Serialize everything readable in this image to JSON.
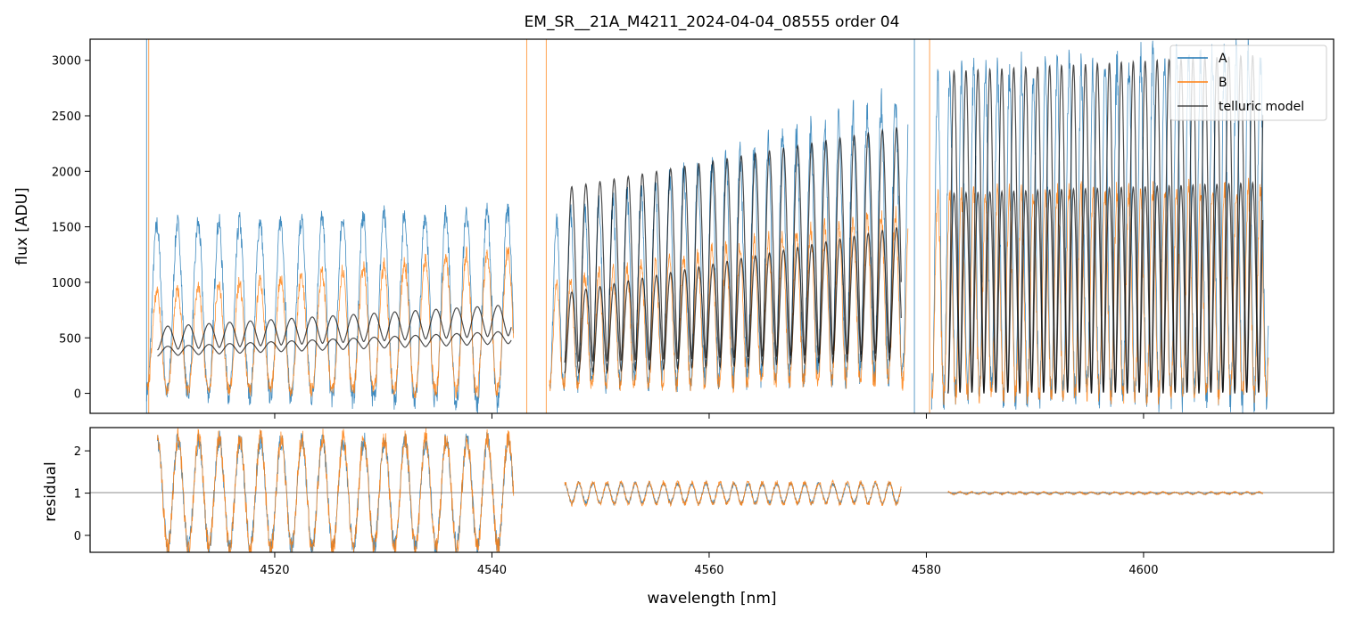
{
  "figure": {
    "title": "EM_SR__21A_M4211_2024-04-04_08555  order 04"
  },
  "chart_data": [
    {
      "panel": "top",
      "type": "line",
      "ylabel": "flux [ADU]",
      "xlim": [
        4503,
        4617.5
      ],
      "ylim": [
        -180,
        3190
      ],
      "xticks": [
        4520,
        4540,
        4560,
        4580,
        4600
      ],
      "yticks": [
        0,
        500,
        1000,
        1500,
        2000,
        2500,
        3000
      ],
      "legend_position": "top-right",
      "grid": false,
      "series": [
        {
          "name": "A",
          "color": "#1f77b4",
          "segments": [
            {
              "x_range": [
                4508.2,
                4542.0
              ],
              "continuum": [
                1520,
                1650
              ],
              "trough": [
                20,
                -100
              ],
              "period_nm": 1.9
            },
            {
              "x_range": [
                4545.3,
                4578.3
              ],
              "continuum": [
                1550,
                2700
              ],
              "trough": [
                80,
                200
              ],
              "period_nm": 1.3
            },
            {
              "x_range": [
                4580.5,
                4611.5
              ],
              "continuum": [
                2850,
                3100
              ],
              "trough": [
                0,
                0
              ],
              "period_nm": 1.1
            }
          ]
        },
        {
          "name": "B",
          "color": "#ff7f0e",
          "segments": [
            {
              "x_range": [
                4508.2,
                4542.0
              ],
              "continuum": [
                900,
                1300
              ],
              "trough": [
                30,
                20
              ],
              "period_nm": 1.9
            },
            {
              "x_range": [
                4545.3,
                4578.3
              ],
              "continuum": [
                1000,
                1650
              ],
              "trough": [
                60,
                120
              ],
              "period_nm": 1.3
            },
            {
              "x_range": [
                4580.5,
                4611.5
              ],
              "continuum": [
                1800,
                1850
              ],
              "trough": [
                0,
                0
              ],
              "period_nm": 1.1
            }
          ]
        },
        {
          "name": "telluric model",
          "color": "#000000",
          "segments": [
            {
              "x_range": [
                4509.2,
                4541.8
              ],
              "level": [
                600,
                800
              ],
              "depth": 0.35,
              "period_nm": 1.9
            },
            {
              "x_range": [
                4509.2,
                4541.8
              ],
              "level": [
                420,
                560
              ],
              "depth": 0.2,
              "period_nm": 1.9
            },
            {
              "x_range": [
                4546.7,
                4577.7
              ],
              "level": [
                1850,
                2400
              ],
              "depth": 0.85,
              "period_nm": 1.3
            },
            {
              "x_range": [
                4546.7,
                4577.7
              ],
              "level": [
                900,
                1500
              ],
              "depth": 0.8,
              "period_nm": 1.3
            },
            {
              "x_range": [
                4582.0,
                4611.0
              ],
              "level": [
                2900,
                3050
              ],
              "depth": 1.0,
              "period_nm": 1.1
            },
            {
              "x_range": [
                4582.0,
                4611.0
              ],
              "level": [
                1800,
                1900
              ],
              "depth": 1.0,
              "period_nm": 1.1
            }
          ]
        }
      ]
    },
    {
      "panel": "bottom",
      "type": "line",
      "xlabel": "wavelength [nm]",
      "ylabel": "residual",
      "xlim": [
        4503,
        4617.5
      ],
      "ylim": [
        -0.4,
        2.55
      ],
      "xticks": [
        4520,
        4540,
        4560,
        4580,
        4600
      ],
      "yticks": [
        0,
        1,
        2
      ],
      "reference_line_y": 1,
      "series": [
        {
          "name": "A",
          "color": "#1f77b4",
          "segments": [
            {
              "x_range": [
                4509.2,
                4542.0
              ],
              "mean": 1.0,
              "amplitude": 1.25
            },
            {
              "x_range": [
                4546.7,
                4577.7
              ],
              "mean": 1.0,
              "amplitude": 0.25
            },
            {
              "x_range": [
                4582.0,
                4611.0
              ],
              "mean": 1.0,
              "amplitude": 0.02
            }
          ]
        },
        {
          "name": "B",
          "color": "#ff7f0e",
          "segments": [
            {
              "x_range": [
                4509.2,
                4542.0
              ],
              "mean": 1.0,
              "amplitude": 1.3
            },
            {
              "x_range": [
                4546.7,
                4577.7
              ],
              "mean": 1.0,
              "amplitude": 0.28
            },
            {
              "x_range": [
                4582.0,
                4611.0
              ],
              "mean": 1.0,
              "amplitude": 0.03
            }
          ]
        }
      ]
    }
  ]
}
